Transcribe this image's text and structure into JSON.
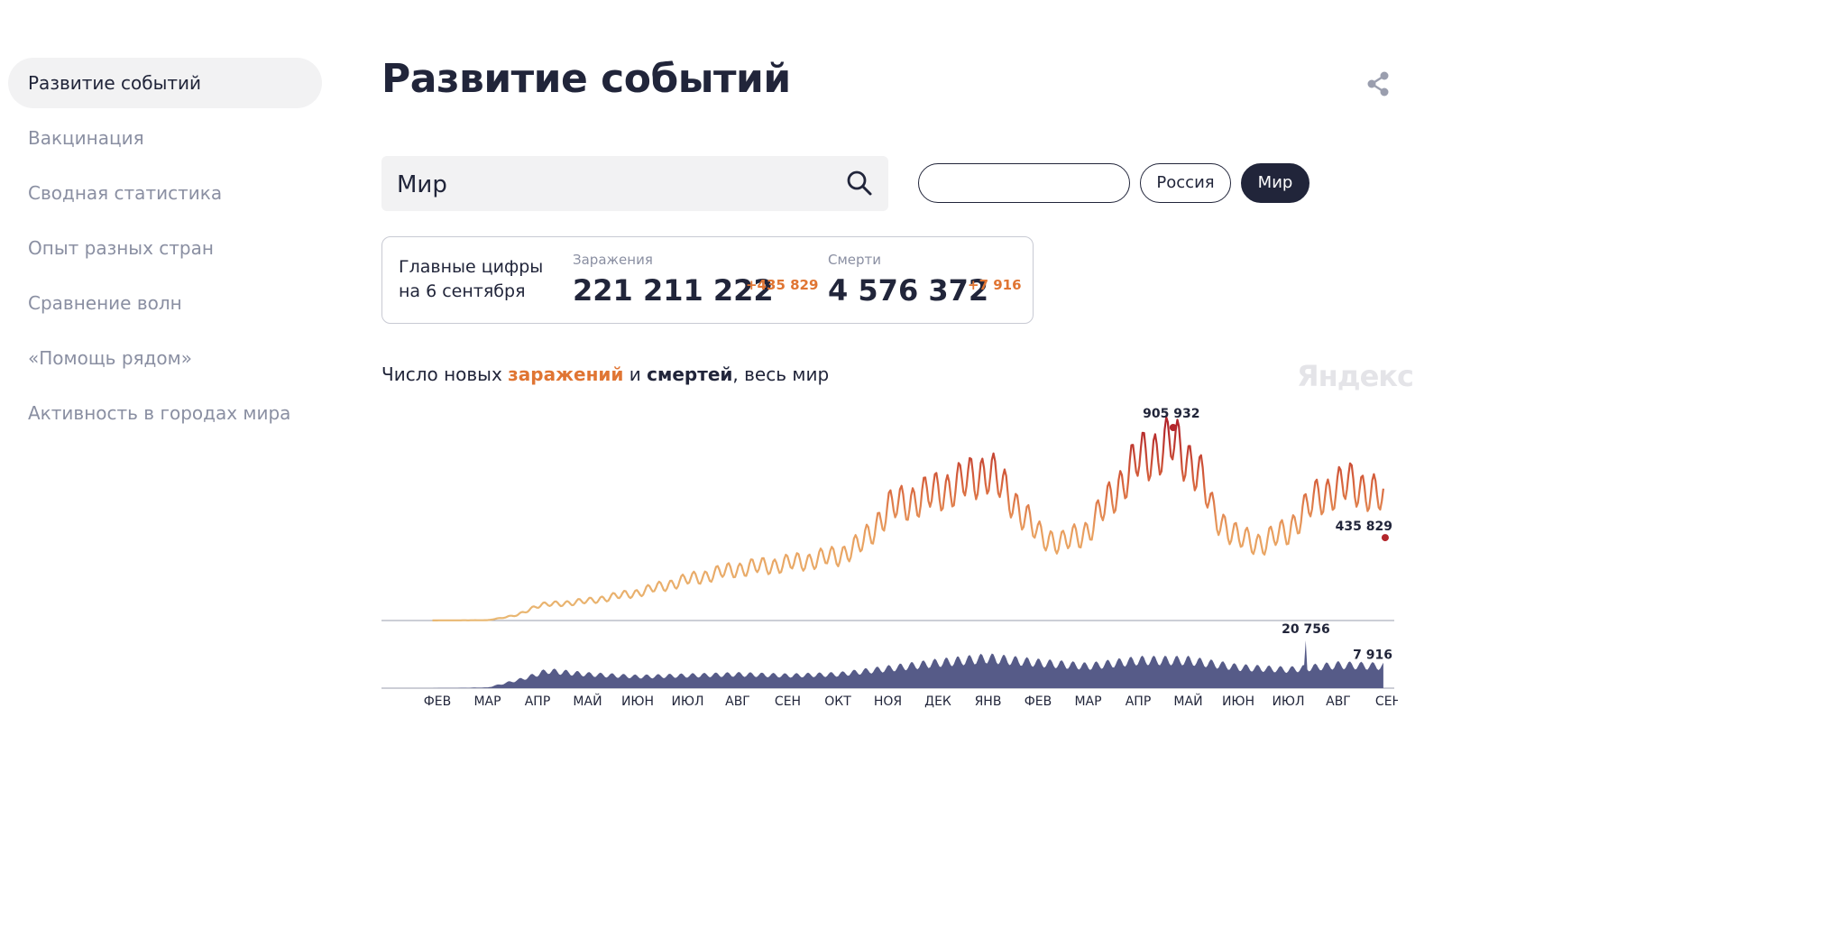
{
  "sidebar": {
    "items": [
      {
        "label": "Развитие событий",
        "active": true
      },
      {
        "label": "Вакцинация"
      },
      {
        "label": "Сводная статистика"
      },
      {
        "label": "Опыт разных стран"
      },
      {
        "label": "Сравнение волн"
      },
      {
        "label": "«Помощь рядом»"
      },
      {
        "label": "Активность в городах мира"
      }
    ]
  },
  "header": {
    "title": "Развитие событий",
    "share_icon": "share-icon"
  },
  "search": {
    "value": "Мир",
    "icon": "search-icon"
  },
  "filters": {
    "empty_value": "",
    "russia_label": "Россия",
    "world_label": "Мир",
    "selected": "Мир"
  },
  "stats": {
    "lead_line1": "Главные цифры",
    "lead_line2": "на 6 сентября",
    "infections_label": "Заражения",
    "infections_value": "221 211 222",
    "infections_delta": "+435 829",
    "deaths_label": "Смерти",
    "deaths_value": "4 576 372",
    "deaths_delta": "+7 916"
  },
  "chart_section": {
    "title_prefix": "Число новых ",
    "title_infections": "заражений",
    "title_and": " и ",
    "title_deaths": "смертей",
    "title_suffix": ", весь мир",
    "brand": "Яндекс"
  },
  "colors": {
    "text_dark": "#21253a",
    "text_muted": "#8a8fa2",
    "accent_orange": "#e07533",
    "infections_low": "#e9b873",
    "infections_high": "#b3262b",
    "deaths_fill": "#565b88"
  },
  "chart_data": {
    "type": "area",
    "x_tick_labels": [
      "ФЕВ",
      "МАР",
      "АПР",
      "МАЙ",
      "ИЮН",
      "ИЮЛ",
      "АВГ",
      "СЕН",
      "ОКТ",
      "НОЯ",
      "ДЕК",
      "ЯНВ",
      "ФЕВ",
      "МАР",
      "АПР",
      "МАЙ",
      "ИЮН",
      "ИЮЛ",
      "АВГ",
      "СЕН"
    ],
    "weekly_oscillation": true,
    "infections": {
      "name": "заражений",
      "max_label": "905 932",
      "last_label": "435 829",
      "points": [
        {
          "month_index": -0.1,
          "value": 500
        },
        {
          "month_index": 1.0,
          "value": 1500
        },
        {
          "month_index": 1.6,
          "value": 25000
        },
        {
          "month_index": 2.0,
          "value": 70000
        },
        {
          "month_index": 3.0,
          "value": 90000
        },
        {
          "month_index": 4.0,
          "value": 130000
        },
        {
          "month_index": 5.0,
          "value": 190000
        },
        {
          "month_index": 6.0,
          "value": 240000
        },
        {
          "month_index": 7.0,
          "value": 265000
        },
        {
          "month_index": 8.0,
          "value": 300000
        },
        {
          "month_index": 8.5,
          "value": 360000
        },
        {
          "month_index": 9.0,
          "value": 520000
        },
        {
          "month_index": 10.0,
          "value": 600000
        },
        {
          "month_index": 10.5,
          "value": 640000
        },
        {
          "month_index": 11.0,
          "value": 700000
        },
        {
          "month_index": 11.5,
          "value": 560000
        },
        {
          "month_index": 12.0,
          "value": 400000
        },
        {
          "month_index": 12.5,
          "value": 360000
        },
        {
          "month_index": 13.0,
          "value": 420000
        },
        {
          "month_index": 14.0,
          "value": 750000
        },
        {
          "month_index": 14.7,
          "value": 830000
        },
        {
          "month_index": 15.2,
          "value": 700000
        },
        {
          "month_index": 15.5,
          "value": 500000
        },
        {
          "month_index": 16.0,
          "value": 380000
        },
        {
          "month_index": 16.5,
          "value": 360000
        },
        {
          "month_index": 17.0,
          "value": 420000
        },
        {
          "month_index": 17.6,
          "value": 580000
        },
        {
          "month_index": 18.3,
          "value": 640000
        },
        {
          "month_index": 18.9,
          "value": 560000
        }
      ]
    },
    "deaths": {
      "name": "смертей",
      "max_label": "20 756",
      "last_label": "7 916",
      "points": [
        {
          "month_index": -0.1,
          "value": 20
        },
        {
          "month_index": 1.0,
          "value": 300
        },
        {
          "month_index": 1.7,
          "value": 4000
        },
        {
          "month_index": 2.2,
          "value": 7500
        },
        {
          "month_index": 3.0,
          "value": 6000
        },
        {
          "month_index": 4.0,
          "value": 5000
        },
        {
          "month_index": 5.0,
          "value": 5500
        },
        {
          "month_index": 6.0,
          "value": 6000
        },
        {
          "month_index": 7.0,
          "value": 5500
        },
        {
          "month_index": 8.0,
          "value": 6000
        },
        {
          "month_index": 9.0,
          "value": 8500
        },
        {
          "month_index": 10.0,
          "value": 11000
        },
        {
          "month_index": 11.0,
          "value": 13000
        },
        {
          "month_index": 12.0,
          "value": 11000
        },
        {
          "month_index": 13.0,
          "value": 9500
        },
        {
          "month_index": 14.0,
          "value": 12000
        },
        {
          "month_index": 15.0,
          "value": 12000
        },
        {
          "month_index": 16.0,
          "value": 9000
        },
        {
          "month_index": 17.0,
          "value": 8000
        },
        {
          "month_index": 18.0,
          "value": 10000
        },
        {
          "month_index": 18.9,
          "value": 9500
        }
      ]
    }
  }
}
